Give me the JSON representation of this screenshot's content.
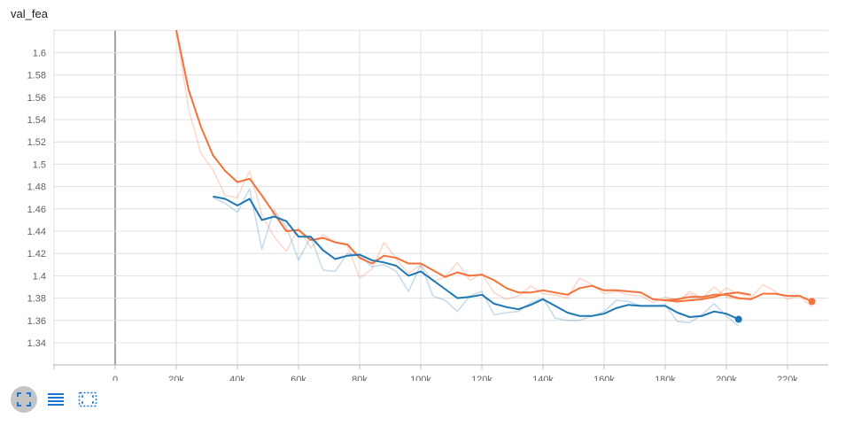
{
  "title": "val_fea",
  "toolbar": {
    "icons": [
      "expand-icon",
      "list-icon",
      "fit-domain-icon"
    ],
    "accent": "#1976d2"
  },
  "chart_data": {
    "type": "line",
    "title": "val_fea",
    "xlabel": "",
    "ylabel": "",
    "xlim": [
      -20000,
      240000
    ],
    "ylim": [
      1.32,
      1.62
    ],
    "x_ticks": [
      0,
      20000,
      40000,
      60000,
      80000,
      100000,
      120000,
      140000,
      160000,
      180000,
      200000,
      220000
    ],
    "x_tick_labels": [
      "0",
      "20k",
      "40k",
      "60k",
      "80k",
      "100k",
      "120k",
      "140k",
      "160k",
      "180k",
      "200k",
      "220k"
    ],
    "y_ticks": [
      1.34,
      1.36,
      1.38,
      1.4,
      1.42,
      1.44,
      1.46,
      1.48,
      1.5,
      1.52,
      1.54,
      1.56,
      1.58,
      1.6
    ],
    "y_tick_labels": [
      "1.34",
      "1.36",
      "1.38",
      "1.4",
      "1.42",
      "1.44",
      "1.46",
      "1.48",
      "1.5",
      "1.52",
      "1.54",
      "1.56",
      "1.58",
      "1.6"
    ],
    "grid": true,
    "series": [
      {
        "color": "#f4713a",
        "x": [
          20000,
          24000,
          28000,
          32000,
          36000,
          40000,
          44000,
          48000,
          52000,
          56000,
          60000,
          64000,
          68000,
          72000,
          76000,
          80000,
          84000,
          88000,
          92000,
          96000,
          100000,
          104000,
          108000,
          112000,
          116000,
          120000,
          124000,
          128000,
          132000,
          136000,
          140000,
          144000,
          148000,
          152000,
          156000,
          160000,
          164000,
          168000,
          172000,
          176000,
          180000,
          184000,
          188000,
          192000,
          196000,
          200000,
          204000,
          208000,
          212000,
          216000,
          220000,
          224000,
          228000
        ],
        "raw": [
          1.62,
          1.55,
          1.51,
          1.495,
          1.472,
          1.47,
          1.494,
          1.455,
          1.435,
          1.422,
          1.443,
          1.425,
          1.437,
          1.43,
          1.427,
          1.398,
          1.406,
          1.43,
          1.415,
          1.402,
          1.41,
          1.395,
          1.399,
          1.412,
          1.396,
          1.402,
          1.385,
          1.379,
          1.382,
          1.391,
          1.384,
          1.383,
          1.38,
          1.398,
          1.392,
          1.384,
          1.386,
          1.383,
          1.382,
          1.376,
          1.381,
          1.378,
          1.384,
          1.38,
          1.39,
          1.381,
          1.379,
          1.38,
          1.392,
          1.386,
          1.379,
          1.382,
          1.372
        ],
        "smoothed": [
          1.62,
          1.567,
          1.534,
          1.508,
          1.494,
          1.484,
          1.487,
          1.472,
          1.456,
          1.44,
          1.441,
          1.432,
          1.434,
          1.43,
          1.428,
          1.416,
          1.411,
          1.418,
          1.416,
          1.411,
          1.411,
          1.405,
          1.399,
          1.403,
          1.4,
          1.401,
          1.396,
          1.389,
          1.385,
          1.385,
          1.387,
          1.385,
          1.383,
          1.389,
          1.391,
          1.387,
          1.387,
          1.386,
          1.385,
          1.379,
          1.378,
          1.379,
          1.381,
          1.381,
          1.383,
          1.383,
          1.38,
          1.379,
          1.384,
          1.384,
          1.382,
          1.382,
          1.377
        ]
      },
      {
        "color": "#f4713a",
        "x": [
          180000,
          184000,
          188000,
          192000,
          196000,
          200000,
          204000,
          208000
        ],
        "raw": [
          1.38,
          1.376,
          1.386,
          1.38,
          1.381,
          1.389,
          1.384,
          1.382
        ],
        "smoothed": [
          1.378,
          1.377,
          1.378,
          1.379,
          1.381,
          1.384,
          1.385,
          1.383
        ]
      },
      {
        "color": "#1f78b4",
        "x": [
          32000,
          36000,
          40000,
          44000,
          48000,
          52000,
          56000,
          60000,
          64000,
          68000,
          72000,
          76000,
          80000,
          84000,
          88000,
          92000,
          96000,
          100000,
          104000,
          108000,
          112000,
          116000,
          120000,
          124000,
          128000,
          132000,
          136000,
          140000,
          144000,
          148000,
          152000,
          156000,
          160000,
          164000,
          168000,
          172000,
          176000,
          180000,
          184000,
          188000,
          192000,
          196000,
          200000,
          204000
        ],
        "raw": [
          1.47,
          1.465,
          1.457,
          1.478,
          1.424,
          1.459,
          1.444,
          1.414,
          1.435,
          1.405,
          1.404,
          1.42,
          1.418,
          1.408,
          1.41,
          1.404,
          1.386,
          1.41,
          1.382,
          1.378,
          1.368,
          1.382,
          1.386,
          1.365,
          1.367,
          1.368,
          1.376,
          1.38,
          1.362,
          1.36,
          1.36,
          1.364,
          1.368,
          1.378,
          1.377,
          1.373,
          1.373,
          1.374,
          1.359,
          1.358,
          1.365,
          1.375,
          1.364,
          1.355
        ],
        "smoothed": [
          1.471,
          1.469,
          1.463,
          1.469,
          1.45,
          1.453,
          1.449,
          1.435,
          1.435,
          1.423,
          1.415,
          1.418,
          1.419,
          1.414,
          1.412,
          1.409,
          1.4,
          1.404,
          1.396,
          1.388,
          1.38,
          1.381,
          1.383,
          1.375,
          1.372,
          1.37,
          1.374,
          1.379,
          1.373,
          1.367,
          1.364,
          1.364,
          1.366,
          1.371,
          1.374,
          1.373,
          1.373,
          1.373,
          1.367,
          1.363,
          1.364,
          1.368,
          1.366,
          1.361
        ]
      }
    ]
  }
}
